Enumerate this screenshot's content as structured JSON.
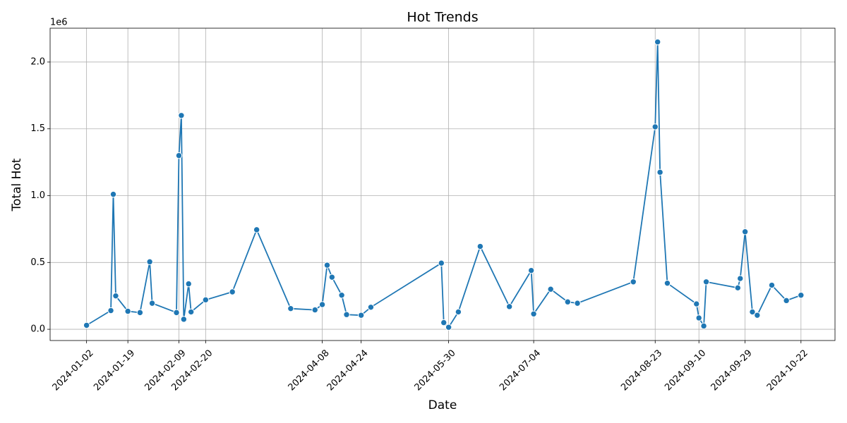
{
  "chart_data": {
    "type": "line",
    "title": "Hot Trends",
    "x_label": "Date",
    "y_label": "Total Hot",
    "y_offset_label": "1e6",
    "x": [
      "2024-01-02",
      "2024-01-12",
      "2024-01-13",
      "2024-01-14",
      "2024-01-19",
      "2024-01-24",
      "2024-01-28",
      "2024-01-29",
      "2024-02-08",
      "2024-02-09",
      "2024-02-10",
      "2024-02-11",
      "2024-02-13",
      "2024-02-14",
      "2024-02-20",
      "2024-03-02",
      "2024-03-12",
      "2024-03-26",
      "2024-04-05",
      "2024-04-08",
      "2024-04-10",
      "2024-04-12",
      "2024-04-16",
      "2024-04-18",
      "2024-04-24",
      "2024-04-28",
      "2024-05-27",
      "2024-05-28",
      "2024-05-30",
      "2024-06-03",
      "2024-06-12",
      "2024-06-24",
      "2024-07-03",
      "2024-07-04",
      "2024-07-11",
      "2024-07-18",
      "2024-07-22",
      "2024-08-14",
      "2024-08-23",
      "2024-08-24",
      "2024-08-25",
      "2024-08-28",
      "2024-09-09",
      "2024-09-10",
      "2024-09-12",
      "2024-09-13",
      "2024-09-26",
      "2024-09-27",
      "2024-09-29",
      "2024-10-02",
      "2024-10-04",
      "2024-10-10",
      "2024-10-16",
      "2024-10-22"
    ],
    "series": [
      {
        "name": "Total Hot",
        "color": "#1f77b4",
        "values": [
          30000,
          140000,
          1010000,
          250000,
          135000,
          125000,
          505000,
          195000,
          125000,
          1300000,
          1600000,
          75000,
          340000,
          130000,
          220000,
          280000,
          745000,
          155000,
          145000,
          185000,
          480000,
          390000,
          255000,
          110000,
          105000,
          165000,
          495000,
          50000,
          15000,
          130000,
          620000,
          170000,
          440000,
          115000,
          300000,
          205000,
          195000,
          355000,
          1515000,
          2150000,
          1175000,
          345000,
          190000,
          85000,
          25000,
          355000,
          310000,
          380000,
          730000,
          130000,
          105000,
          330000,
          215000,
          255000
        ]
      }
    ],
    "xlim": [
      "2023-12-18",
      "2024-11-05"
    ],
    "xticks": [
      "2024-01-02",
      "2024-01-19",
      "2024-02-09",
      "2024-02-20",
      "2024-04-08",
      "2024-04-24",
      "2024-05-30",
      "2024-07-04",
      "2024-08-23",
      "2024-09-10",
      "2024-09-29",
      "2024-10-22"
    ],
    "ylim": [
      -84000,
      2253000
    ],
    "yticks": [
      {
        "value": 0,
        "label": "0.0"
      },
      {
        "value": 500000,
        "label": "0.5"
      },
      {
        "value": 1000000,
        "label": "1.0"
      },
      {
        "value": 1500000,
        "label": "1.5"
      },
      {
        "value": 2000000,
        "label": "2.0"
      }
    ],
    "grid": true
  }
}
